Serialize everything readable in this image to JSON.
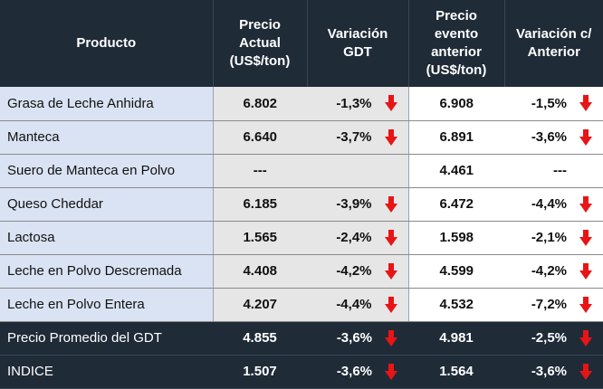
{
  "headers": {
    "product": "Producto",
    "current_price": "Precio\nActual\n(US$/ton)",
    "gdt_variation": "Variación\nGDT",
    "previous_price": "Precio\nevento\nanterior\n(US$/ton)",
    "previous_variation": "Variación c/\nAnterior"
  },
  "rows": [
    {
      "product": "Grasa de Leche Anhidra",
      "current": "6.802",
      "var": "-1,3%",
      "var_arrow": true,
      "previous": "6.908",
      "pvar": "-1,5%",
      "pvar_arrow": true
    },
    {
      "product": "Manteca",
      "current": "6.640",
      "var": "-3,7%",
      "var_arrow": true,
      "previous": "6.891",
      "pvar": "-3,6%",
      "pvar_arrow": true
    },
    {
      "product": "Suero de Manteca en Polvo",
      "current": "---",
      "var": "",
      "var_arrow": false,
      "previous": "4.461",
      "pvar": "---",
      "pvar_arrow": false
    },
    {
      "product": "Queso Cheddar",
      "current": "6.185",
      "var": "-3,9%",
      "var_arrow": true,
      "previous": "6.472",
      "pvar": "-4,4%",
      "pvar_arrow": true
    },
    {
      "product": "Lactosa",
      "current": "1.565",
      "var": "-2,4%",
      "var_arrow": true,
      "previous": "1.598",
      "pvar": "-2,1%",
      "pvar_arrow": true
    },
    {
      "product": "Leche en Polvo Descremada",
      "current": "4.408",
      "var": "-4,2%",
      "var_arrow": true,
      "previous": "4.599",
      "pvar": "-4,2%",
      "pvar_arrow": true
    },
    {
      "product": "Leche en Polvo Entera",
      "current": "4.207",
      "var": "-4,4%",
      "var_arrow": true,
      "previous": "4.532",
      "pvar": "-7,2%",
      "pvar_arrow": true
    }
  ],
  "totals": [
    {
      "product": "Precio Promedio del GDT",
      "current": "4.855",
      "var": "-3,6%",
      "var_arrow": true,
      "previous": "4.981",
      "pvar": "-2,5%",
      "pvar_arrow": true
    },
    {
      "product": "INDICE",
      "current": "1.507",
      "var": "-3,6%",
      "var_arrow": true,
      "previous": "1.564",
      "pvar": "-3,6%",
      "pvar_arrow": true
    }
  ],
  "colors": {
    "arrow_down": "#e81416",
    "header_bg": "#1f2b37",
    "product_bg": "#dae3f3",
    "current_bg": "#e6e6e6"
  },
  "icons": {
    "down": "arrow-down-icon"
  }
}
